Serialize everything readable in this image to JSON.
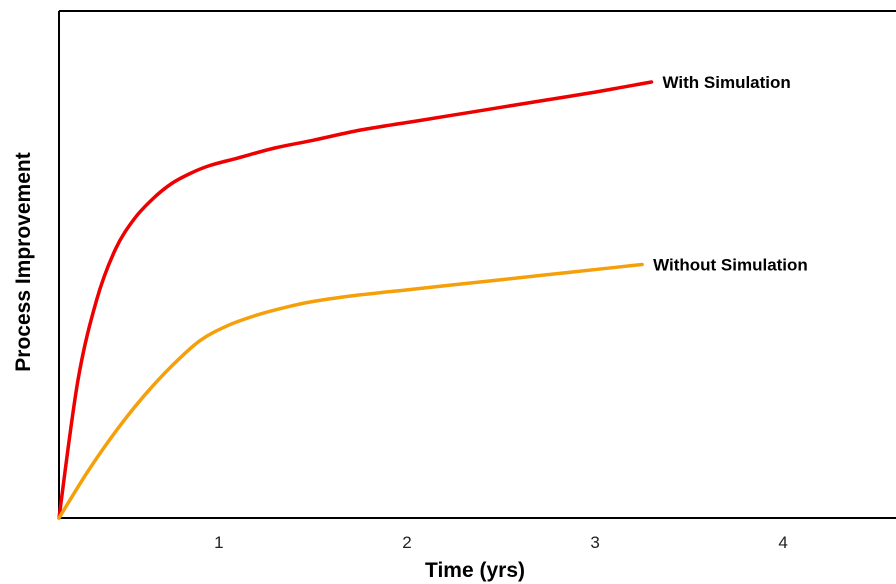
{
  "chart_data": {
    "type": "line",
    "title": "",
    "xlabel": "Time (yrs)",
    "ylabel": "Process Improvement",
    "xlim": [
      0.15,
      4.6
    ],
    "ylim": [
      0,
      1
    ],
    "x_ticks": [
      1,
      2,
      3,
      4
    ],
    "x_tick_labels": [
      "1",
      "2",
      "3",
      "4"
    ],
    "y_ticks": [],
    "grid": false,
    "legend": "none",
    "series": [
      {
        "name": "With Simulation",
        "color": "#ee0000",
        "x": [
          0.15,
          0.25,
          0.35,
          0.45,
          0.55,
          0.65,
          0.75,
          0.85,
          0.95,
          1.1,
          1.3,
          1.5,
          1.75,
          2.0,
          2.25,
          2.5,
          2.75,
          3.0,
          3.15,
          3.3
        ],
        "y": [
          0.0,
          0.27,
          0.43,
          0.53,
          0.59,
          0.63,
          0.66,
          0.68,
          0.695,
          0.71,
          0.73,
          0.745,
          0.765,
          0.78,
          0.795,
          0.81,
          0.825,
          0.84,
          0.85,
          0.86
        ]
      },
      {
        "name": "Without Simulation",
        "color": "#f5a00a",
        "x": [
          0.15,
          0.3,
          0.45,
          0.6,
          0.75,
          0.9,
          1.05,
          1.2,
          1.35,
          1.5,
          1.75,
          2.0,
          2.25,
          2.5,
          2.75,
          3.0,
          3.25
        ],
        "y": [
          0.0,
          0.09,
          0.17,
          0.24,
          0.3,
          0.35,
          0.38,
          0.4,
          0.415,
          0.427,
          0.44,
          0.45,
          0.46,
          0.47,
          0.48,
          0.49,
          0.5
        ]
      }
    ]
  }
}
